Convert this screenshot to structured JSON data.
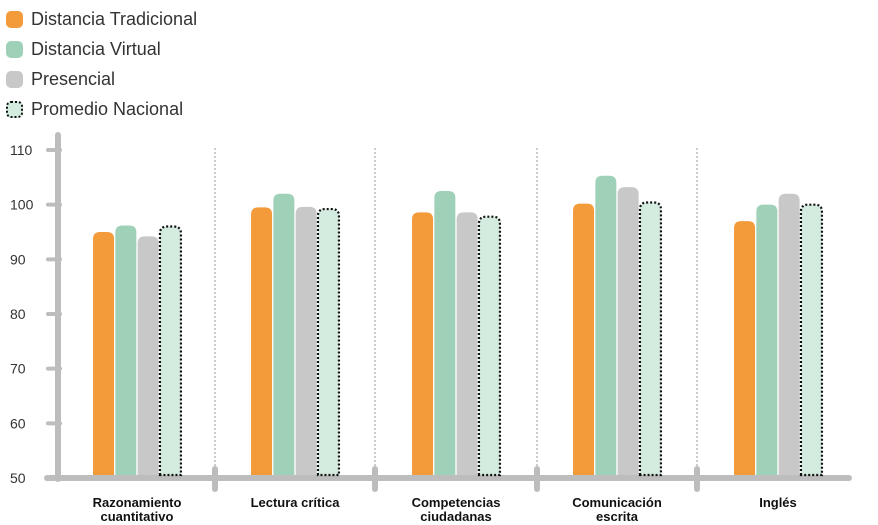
{
  "chart_data": {
    "type": "bar",
    "categories": [
      [
        "Razonamiento",
        "cuantitativo"
      ],
      [
        "Lectura crítica"
      ],
      [
        "Competencias",
        "ciudadanas"
      ],
      [
        "Comunicación",
        "escrita"
      ],
      [
        "Inglés"
      ]
    ],
    "series": [
      {
        "name": "Distancia Tradicional",
        "color": "#f39a3b",
        "values": [
          95,
          99.5,
          98.6,
          100.2,
          97
        ]
      },
      {
        "name": "Distancia Virtual",
        "color": "#9fd1b8",
        "values": [
          96.2,
          102,
          102.5,
          105.3,
          100
        ]
      },
      {
        "name": "Presencial",
        "color": "#c8c8c8",
        "values": [
          94.2,
          99.6,
          98.6,
          103.2,
          102
        ]
      },
      {
        "name": "Promedio Nacional",
        "color": "#d4ecdf",
        "dashed": true,
        "values": [
          96,
          99.2,
          97.8,
          100.4,
          100
        ]
      }
    ],
    "y_ticks": [
      110,
      100,
      90,
      80,
      70,
      60,
      50
    ],
    "ylim": [
      50,
      110
    ],
    "legend_position": "top-left",
    "axis_color": "#bdbdbd",
    "separator_color": "#9a9a9a"
  }
}
